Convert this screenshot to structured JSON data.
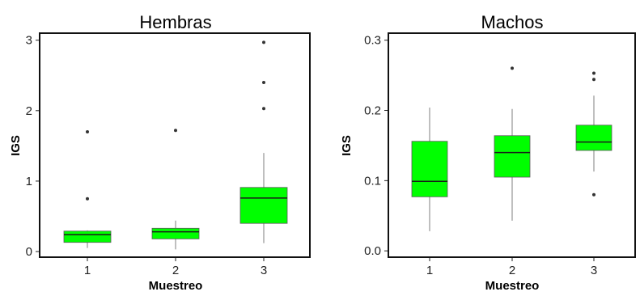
{
  "chart_data": [
    {
      "type": "box",
      "title": "Hembras",
      "xlabel": "Muestreo",
      "ylabel": "IGS",
      "categories": [
        "1",
        "2",
        "3"
      ],
      "yticks": [
        "0",
        "1",
        "2",
        "3"
      ],
      "ylim": [
        -0.08,
        3.1
      ],
      "box_color": "#00ff00",
      "boxes": [
        {
          "category": "1",
          "whisker_low": 0.05,
          "q1": 0.13,
          "median": 0.24,
          "q3": 0.29,
          "whisker_high": 0.3,
          "outliers": [
            0.75,
            1.7
          ]
        },
        {
          "category": "2",
          "whisker_low": 0.03,
          "q1": 0.18,
          "median": 0.28,
          "q3": 0.33,
          "whisker_high": 0.44,
          "outliers": [
            1.72
          ]
        },
        {
          "category": "3",
          "whisker_low": 0.12,
          "q1": 0.4,
          "median": 0.76,
          "q3": 0.91,
          "whisker_high": 1.4,
          "outliers": [
            2.03,
            2.4,
            2.97
          ]
        }
      ]
    },
    {
      "type": "box",
      "title": "Machos",
      "xlabel": "Muestreo",
      "ylabel": "IGS",
      "categories": [
        "1",
        "2",
        "3"
      ],
      "yticks": [
        "0.0",
        "0.1",
        "0.2",
        "0.3"
      ],
      "ylim": [
        -0.009,
        0.31
      ],
      "box_color": "#00ff00",
      "boxes": [
        {
          "category": "1",
          "whisker_low": 0.028,
          "q1": 0.077,
          "median": 0.099,
          "q3": 0.156,
          "whisker_high": 0.204,
          "outliers": []
        },
        {
          "category": "2",
          "whisker_low": 0.043,
          "q1": 0.105,
          "median": 0.14,
          "q3": 0.164,
          "whisker_high": 0.202,
          "outliers": [
            0.26
          ]
        },
        {
          "category": "3",
          "whisker_low": 0.113,
          "q1": 0.143,
          "median": 0.155,
          "q3": 0.179,
          "whisker_high": 0.221,
          "outliers": [
            0.08,
            0.244,
            0.253
          ]
        }
      ]
    }
  ]
}
